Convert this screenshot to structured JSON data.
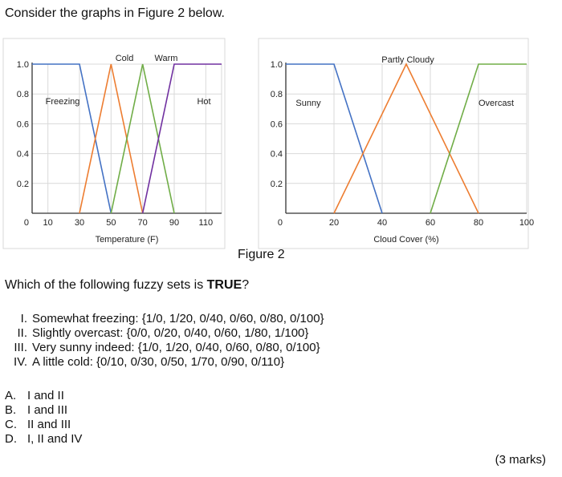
{
  "intro_text": "Consider the graphs in Figure 2 below.",
  "figure_caption": "Figure 2",
  "question": {
    "prefix": "Which of the following fuzzy sets is ",
    "bold": "TRUE",
    "suffix": "?"
  },
  "statements": [
    {
      "num": "I.",
      "text": "Somewhat freezing: {1/0, 1/20, 0/40, 0/60, 0/80, 0/100}"
    },
    {
      "num": "II.",
      "text": "Slightly overcast: {0/0, 0/20, 0/40, 0/60, 1/80, 1/100}"
    },
    {
      "num": "III.",
      "text": "Very sunny indeed: {1/0, 1/20, 0/40, 0/60, 0/80, 0/100}"
    },
    {
      "num": "IV.",
      "text": "A little cold: {0/10, 0/30, 0/50, 1/70, 0/90, 0/110}"
    }
  ],
  "options": [
    {
      "letter": "A.",
      "text": "I and II"
    },
    {
      "letter": "B.",
      "text": "I and III"
    },
    {
      "letter": "C.",
      "text": "II and III"
    },
    {
      "letter": "D.",
      "text": "I, II and IV"
    }
  ],
  "marks": "(3 marks)",
  "chart_data": [
    {
      "type": "line",
      "xlabel": "Temperature (F)",
      "ylabel": "",
      "xlim": [
        0,
        120
      ],
      "ylim": [
        0,
        1
      ],
      "x_ticks": [
        "0",
        "10",
        "30",
        "50",
        "70",
        "90",
        "110"
      ],
      "x_tick_values": [
        0,
        10,
        30,
        50,
        70,
        90,
        110
      ],
      "y_ticks": [
        "0",
        "0.2",
        "0.4",
        "0.6",
        "0.8",
        "1.0"
      ],
      "y_tick_values": [
        0,
        0.2,
        0.4,
        0.6,
        0.8,
        1.0
      ],
      "grid": true,
      "series": [
        {
          "name": "Freezing",
          "color": "#4472c4",
          "points": [
            [
              0,
              1
            ],
            [
              30,
              1
            ],
            [
              50,
              0
            ]
          ]
        },
        {
          "name": "Cold",
          "color": "#ed7d31",
          "points": [
            [
              30,
              0
            ],
            [
              50,
              1
            ],
            [
              70,
              0
            ]
          ]
        },
        {
          "name": "Warm",
          "color": "#70ad47",
          "points": [
            [
              50,
              0
            ],
            [
              70,
              1
            ],
            [
              90,
              0
            ]
          ]
        },
        {
          "name": "Hot",
          "color": "#7030a0",
          "points": [
            [
              70,
              0
            ],
            [
              90,
              1
            ],
            [
              120,
              1
            ]
          ]
        }
      ]
    },
    {
      "type": "line",
      "xlabel": "Cloud Cover (%)",
      "ylabel": "",
      "xlim": [
        0,
        100
      ],
      "ylim": [
        0,
        1
      ],
      "x_ticks": [
        "0",
        "20",
        "40",
        "60",
        "80",
        "100"
      ],
      "x_tick_values": [
        0,
        20,
        40,
        60,
        80,
        100
      ],
      "y_ticks": [
        "0",
        "0.2",
        "0.4",
        "0.6",
        "0.8",
        "1.0"
      ],
      "y_tick_values": [
        0,
        0.2,
        0.4,
        0.6,
        0.8,
        1.0
      ],
      "grid": true,
      "series": [
        {
          "name": "Sunny",
          "color": "#4472c4",
          "points": [
            [
              0,
              1
            ],
            [
              20,
              1
            ],
            [
              40,
              0
            ]
          ]
        },
        {
          "name": "Partly Cloudy",
          "color": "#ed7d31",
          "points": [
            [
              20,
              0
            ],
            [
              50,
              1
            ],
            [
              80,
              0
            ]
          ]
        },
        {
          "name": "Overcast",
          "color": "#70ad47",
          "points": [
            [
              60,
              0
            ],
            [
              80,
              1
            ],
            [
              100,
              1
            ]
          ]
        }
      ]
    }
  ]
}
